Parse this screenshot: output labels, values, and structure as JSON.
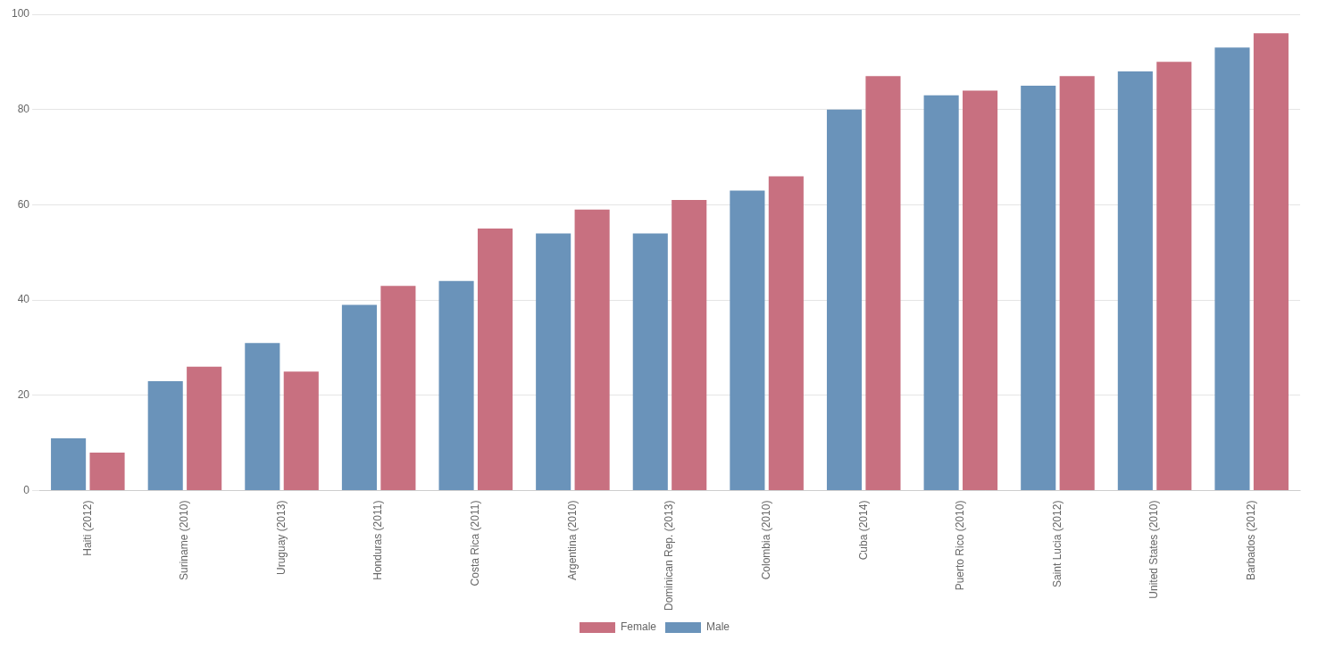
{
  "chart_data": {
    "type": "bar",
    "categories": [
      "Haiti (2012)",
      "Suriname (2010)",
      "Uruguay (2013)",
      "Honduras (2011)",
      "Costa Rica (2011)",
      "Argentina (2010)",
      "Dominican Rep. (2013)",
      "Colombia (2010)",
      "Cuba (2014)",
      "Puerto Rico (2010)",
      "Saint Lucia (2012)",
      "United States (2010)",
      "Barbados (2012)"
    ],
    "series": [
      {
        "name": "Male",
        "color": "#6a93ba",
        "values": [
          11,
          23,
          31,
          39,
          44,
          54,
          54,
          63,
          80,
          83,
          85,
          88,
          93
        ]
      },
      {
        "name": "Female",
        "color": "#c87080",
        "values": [
          8,
          26,
          25,
          43,
          55,
          59,
          61,
          66,
          87,
          84,
          87,
          90,
          96
        ]
      }
    ],
    "ylim": [
      0,
      100
    ],
    "yticks": [
      0,
      20,
      40,
      60,
      80,
      100
    ],
    "grid": true,
    "legend": "bottom"
  }
}
